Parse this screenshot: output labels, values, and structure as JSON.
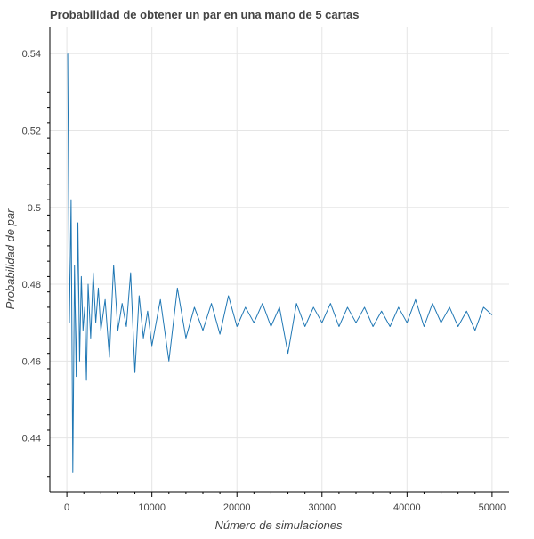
{
  "chart_data": {
    "type": "line",
    "title": "Probabilidad de obtener un par en una mano de 5 cartas",
    "xlabel": "Número de simulaciones",
    "ylabel": "Probabilidad de par",
    "xlim": [
      -2000,
      52000
    ],
    "ylim": [
      0.426,
      0.547
    ],
    "xticks": [
      0,
      10000,
      20000,
      30000,
      40000,
      50000
    ],
    "xtick_labels": [
      "0",
      "10000",
      "20000",
      "30000",
      "40000",
      "50000"
    ],
    "yticks": [
      0.44,
      0.46,
      0.48,
      0.5,
      0.52,
      0.54
    ],
    "ytick_labels": [
      "0.44",
      "0.46",
      "0.48",
      "0.5",
      "0.52",
      "0.54"
    ],
    "grid": true,
    "line_color": "#1f77b4",
    "series": [
      {
        "x": [
          100,
          300,
          500,
          700,
          900,
          1100,
          1300,
          1500,
          1700,
          1900,
          2100,
          2300,
          2500,
          2800,
          3100,
          3400,
          3700,
          4000,
          4500,
          5000,
          5500,
          6000,
          6500,
          7000,
          7500,
          8000,
          8500,
          9000,
          9500,
          10000,
          11000,
          12000,
          13000,
          14000,
          15000,
          16000,
          17000,
          18000,
          19000,
          20000,
          21000,
          22000,
          23000,
          24000,
          25000,
          26000,
          27000,
          28000,
          29000,
          30000,
          31000,
          32000,
          33000,
          34000,
          35000,
          36000,
          37000,
          38000,
          39000,
          40000,
          41000,
          42000,
          43000,
          44000,
          45000,
          46000,
          47000,
          48000,
          49000,
          50000
        ],
        "y": [
          0.54,
          0.47,
          0.502,
          0.431,
          0.485,
          0.456,
          0.496,
          0.46,
          0.482,
          0.468,
          0.474,
          0.455,
          0.48,
          0.466,
          0.483,
          0.47,
          0.479,
          0.468,
          0.476,
          0.461,
          0.485,
          0.468,
          0.475,
          0.469,
          0.483,
          0.457,
          0.477,
          0.466,
          0.473,
          0.464,
          0.476,
          0.46,
          0.479,
          0.466,
          0.474,
          0.468,
          0.475,
          0.467,
          0.477,
          0.469,
          0.474,
          0.47,
          0.475,
          0.469,
          0.474,
          0.462,
          0.475,
          0.469,
          0.474,
          0.47,
          0.475,
          0.469,
          0.474,
          0.47,
          0.474,
          0.469,
          0.473,
          0.469,
          0.474,
          0.47,
          0.476,
          0.469,
          0.475,
          0.47,
          0.474,
          0.469,
          0.473,
          0.468,
          0.474,
          0.472
        ]
      }
    ]
  }
}
